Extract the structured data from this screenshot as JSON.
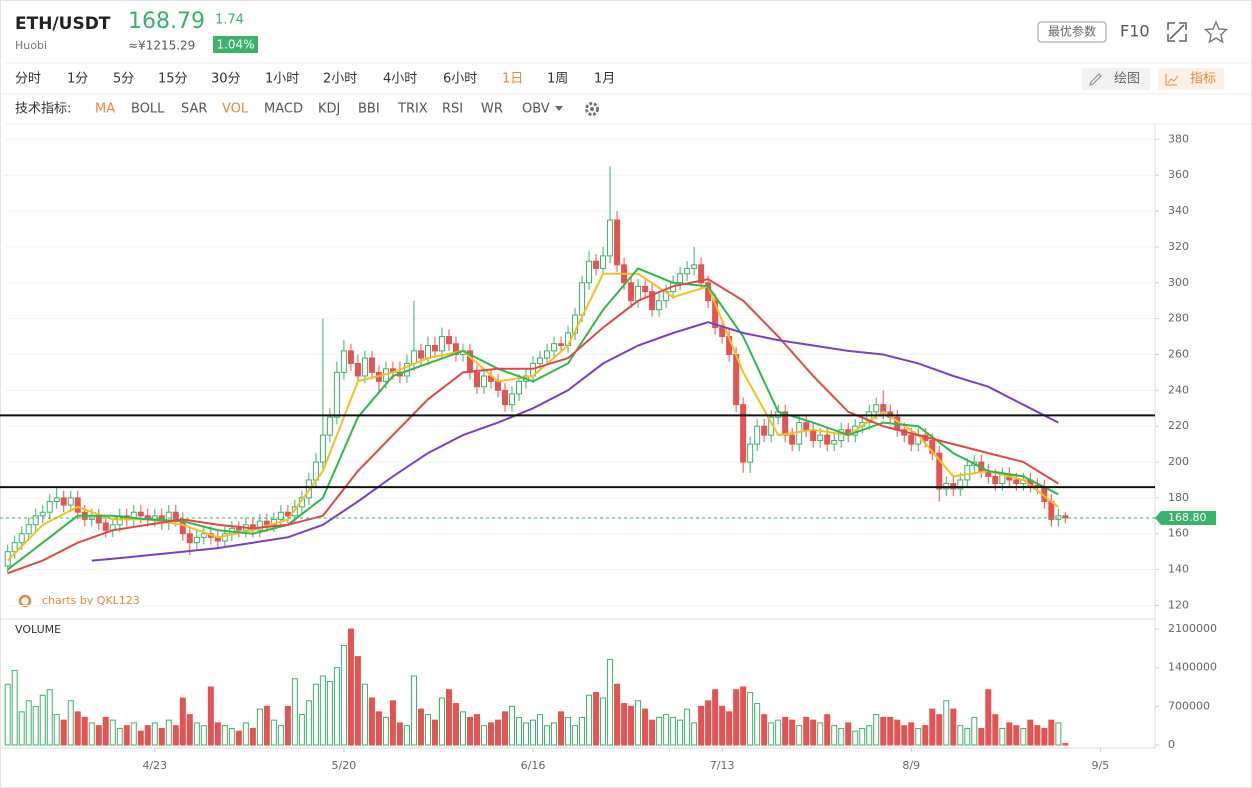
{
  "header": {
    "symbol": "ETH/USDT",
    "exchange": "Huobi",
    "price": "168.79",
    "change": "1.74",
    "cny": "≈¥1215.29",
    "change_pct": "1.04%",
    "params": "最优参数",
    "f10": "F10"
  },
  "toolbar": {
    "intervals": [
      "分时",
      "1分",
      "5分",
      "15分",
      "30分",
      "1小时",
      "2小时",
      "4小时",
      "6小时",
      "1日",
      "1周",
      "1月"
    ],
    "active_interval": 9,
    "draw": "绘图",
    "indicators_btn": "指标",
    "indicator_label": "技术指标:",
    "indicators": [
      "MA",
      "BOLL",
      "SAR",
      "VOL",
      "MACD",
      "KDJ",
      "BBI",
      "TRIX",
      "RSI",
      "WR",
      "OBV"
    ],
    "active_indicators": [
      0,
      3
    ]
  },
  "chart_data": {
    "type": "candlestick",
    "watermark": "charts by QKL123",
    "volume_label": "VOLUME",
    "up_color": "#3bb26a",
    "down_color": "#e55353",
    "xlim": [
      -1.1,
      163.8
    ],
    "xticks": [
      {
        "value": 21,
        "label": "4/23"
      },
      {
        "value": 48,
        "label": "5/20"
      },
      {
        "value": 75,
        "label": "6/16"
      },
      {
        "value": 102,
        "label": "7/13"
      },
      {
        "value": 129,
        "label": "8/9"
      },
      {
        "value": 156,
        "label": "9/5"
      }
    ],
    "ylim": [
      113,
      388
    ],
    "yticks": [
      120,
      140,
      160,
      180,
      200,
      220,
      240,
      260,
      280,
      300,
      320,
      340,
      360,
      380
    ],
    "y2lim": [
      0,
      2100000
    ],
    "y2ticks": [
      0,
      700000,
      1400000,
      2100000
    ],
    "hlines": [
      226,
      186
    ],
    "hline_color": "#111111",
    "last_price": {
      "value": 168.8,
      "label": "168.80"
    },
    "open": [
      142,
      150,
      155,
      160,
      165,
      170,
      172,
      178,
      180,
      176,
      180,
      172,
      168,
      170,
      166,
      162,
      165,
      170,
      168,
      172,
      170,
      168,
      170,
      166,
      172,
      168,
      160,
      155,
      158,
      160,
      158,
      156,
      160,
      163,
      162,
      165,
      162,
      167,
      165,
      168,
      172,
      170,
      175,
      180,
      190,
      200,
      215,
      225,
      250,
      262,
      255,
      248,
      258,
      250,
      245,
      252,
      250,
      248,
      255,
      262,
      258,
      265,
      262,
      270,
      266,
      260,
      262,
      250,
      242,
      248,
      245,
      240,
      232,
      238,
      245,
      248,
      255,
      258,
      262,
      266,
      265,
      272,
      282,
      300,
      312,
      308,
      315,
      335,
      310,
      300,
      290,
      298,
      295,
      285,
      290,
      295,
      300,
      305,
      308,
      310,
      300,
      290,
      275,
      270,
      260,
      232,
      200,
      210,
      220,
      215,
      225,
      228,
      215,
      210,
      222,
      218,
      212,
      215,
      210,
      212,
      218,
      215,
      220,
      222,
      228,
      232,
      228,
      225,
      218,
      215,
      210,
      215,
      212,
      205,
      185,
      188,
      185,
      190,
      198,
      200,
      195,
      192,
      188,
      193,
      190,
      188,
      190,
      187,
      186,
      178,
      168,
      170
    ],
    "high": [
      154,
      159,
      164,
      169,
      174,
      176,
      182,
      186,
      184,
      184,
      184,
      176,
      174,
      174,
      170,
      169,
      174,
      174,
      176,
      176,
      174,
      174,
      174,
      176,
      176,
      172,
      164,
      162,
      164,
      164,
      162,
      164,
      167,
      167,
      169,
      169,
      171,
      171,
      172,
      176,
      176,
      179,
      184,
      194,
      205,
      280,
      230,
      256,
      268,
      266,
      260,
      262,
      262,
      254,
      256,
      256,
      256,
      260,
      290,
      266,
      270,
      270,
      275,
      274,
      270,
      266,
      266,
      254,
      252,
      252,
      249,
      244,
      242,
      249,
      252,
      259,
      262,
      266,
      270,
      270,
      276,
      286,
      304,
      318,
      316,
      320,
      365,
      340,
      314,
      304,
      302,
      302,
      299,
      294,
      299,
      304,
      309,
      312,
      320,
      314,
      304,
      294,
      280,
      274,
      264,
      236,
      214,
      224,
      224,
      229,
      232,
      232,
      219,
      226,
      226,
      222,
      219,
      219,
      216,
      222,
      222,
      224,
      226,
      232,
      236,
      240,
      232,
      229,
      222,
      219,
      219,
      219,
      216,
      209,
      192,
      192,
      194,
      202,
      204,
      204,
      199,
      196,
      197,
      197,
      194,
      194,
      194,
      191,
      190,
      182,
      174,
      172
    ],
    "low": [
      138,
      146,
      151,
      156,
      161,
      166,
      168,
      174,
      172,
      172,
      168,
      164,
      164,
      162,
      158,
      158,
      161,
      164,
      164,
      166,
      164,
      164,
      162,
      162,
      164,
      156,
      148,
      151,
      154,
      154,
      152,
      152,
      156,
      158,
      158,
      158,
      158,
      161,
      161,
      164,
      166,
      166,
      171,
      176,
      186,
      196,
      211,
      221,
      246,
      251,
      244,
      244,
      246,
      238,
      241,
      246,
      244,
      244,
      251,
      254,
      254,
      258,
      258,
      262,
      256,
      256,
      246,
      238,
      238,
      241,
      236,
      228,
      228,
      234,
      241,
      244,
      251,
      254,
      258,
      261,
      261,
      268,
      278,
      296,
      304,
      304,
      311,
      306,
      296,
      286,
      286,
      291,
      281,
      281,
      286,
      291,
      296,
      301,
      304,
      296,
      286,
      271,
      266,
      256,
      228,
      194,
      194,
      206,
      211,
      211,
      221,
      211,
      206,
      206,
      214,
      208,
      208,
      206,
      206,
      208,
      211,
      211,
      216,
      218,
      224,
      224,
      221,
      214,
      211,
      206,
      206,
      208,
      201,
      178,
      181,
      181,
      181,
      186,
      194,
      191,
      188,
      184,
      184,
      186,
      184,
      184,
      183,
      182,
      174,
      164,
      164,
      166
    ],
    "close": [
      150,
      155,
      160,
      165,
      170,
      172,
      178,
      180,
      176,
      180,
      172,
      168,
      170,
      166,
      162,
      165,
      170,
      168,
      172,
      170,
      168,
      170,
      166,
      172,
      168,
      160,
      155,
      158,
      160,
      158,
      156,
      160,
      163,
      162,
      165,
      162,
      167,
      165,
      168,
      172,
      170,
      175,
      180,
      190,
      200,
      215,
      225,
      250,
      262,
      255,
      248,
      258,
      250,
      245,
      252,
      250,
      248,
      255,
      262,
      258,
      265,
      262,
      270,
      266,
      260,
      262,
      250,
      242,
      248,
      245,
      240,
      232,
      238,
      245,
      248,
      255,
      258,
      262,
      266,
      265,
      272,
      282,
      300,
      312,
      308,
      315,
      335,
      310,
      300,
      290,
      298,
      295,
      285,
      290,
      295,
      300,
      305,
      308,
      310,
      300,
      290,
      275,
      270,
      260,
      232,
      200,
      210,
      220,
      215,
      225,
      228,
      215,
      210,
      222,
      218,
      212,
      215,
      210,
      212,
      218,
      215,
      220,
      222,
      228,
      232,
      228,
      225,
      218,
      215,
      210,
      215,
      212,
      205,
      185,
      188,
      185,
      190,
      198,
      200,
      195,
      192,
      188,
      193,
      190,
      188,
      190,
      187,
      186,
      178,
      168,
      170,
      168.79
    ],
    "volume": [
      1100000,
      1350000,
      600000,
      800000,
      700000,
      900000,
      1000000,
      550000,
      450000,
      800000,
      600000,
      500000,
      400000,
      350000,
      500000,
      450000,
      300000,
      350000,
      400000,
      250000,
      350000,
      400000,
      300000,
      450000,
      350000,
      850000,
      550000,
      400000,
      350000,
      1050000,
      400000,
      350000,
      300000,
      250000,
      400000,
      300000,
      650000,
      700000,
      450000,
      350000,
      700000,
      1200000,
      550000,
      800000,
      1100000,
      1250000,
      1150000,
      1400000,
      1800000,
      2100000,
      1600000,
      1100000,
      850000,
      600000,
      500000,
      800000,
      400000,
      350000,
      1250000,
      650000,
      550000,
      450000,
      850000,
      1000000,
      750000,
      600000,
      500000,
      550000,
      350000,
      400000,
      450000,
      600000,
      700000,
      500000,
      400000,
      450000,
      550000,
      350000,
      400000,
      600000,
      500000,
      350000,
      500000,
      900000,
      950000,
      850000,
      1550000,
      1100000,
      750000,
      700000,
      800000,
      650000,
      450000,
      500000,
      550000,
      500000,
      450000,
      650000,
      400000,
      700000,
      800000,
      1000000,
      700000,
      600000,
      1000000,
      1050000,
      950000,
      750000,
      550000,
      400000,
      450000,
      500000,
      450000,
      350000,
      500000,
      450000,
      400000,
      550000,
      350000,
      300000,
      400000,
      250000,
      300000,
      350000,
      550000,
      500000,
      500000,
      450000,
      350000,
      400000,
      300000,
      350000,
      650000,
      550000,
      800000,
      650000,
      350000,
      300000,
      500000,
      300000,
      1000000,
      550000,
      300000,
      400000,
      350000,
      300000,
      450000,
      350000,
      300000,
      450000,
      400000,
      30000
    ],
    "series": [
      {
        "color": "#f2c21b",
        "x": [
          0,
          5,
          10,
          15,
          20,
          25,
          30,
          35,
          40,
          45,
          50,
          55,
          60,
          65,
          70,
          75,
          80,
          85,
          90,
          95,
          100,
          105,
          110,
          115,
          120,
          125,
          130,
          135,
          140,
          145,
          150
        ],
        "values": [
          145,
          165,
          175,
          168,
          168,
          165,
          158,
          162,
          168,
          195,
          245,
          250,
          258,
          262,
          245,
          248,
          265,
          305,
          305,
          292,
          298,
          250,
          215,
          218,
          215,
          228,
          215,
          192,
          195,
          190,
          175
        ]
      },
      {
        "color": "#2eb84e",
        "x": [
          0,
          5,
          10,
          15,
          20,
          25,
          30,
          35,
          40,
          45,
          50,
          55,
          60,
          65,
          70,
          75,
          80,
          85,
          90,
          95,
          100,
          105,
          110,
          115,
          120,
          125,
          130,
          135,
          140,
          145,
          150
        ],
        "values": [
          140,
          155,
          170,
          170,
          168,
          167,
          162,
          160,
          165,
          180,
          225,
          248,
          255,
          262,
          252,
          245,
          255,
          285,
          308,
          300,
          298,
          270,
          228,
          222,
          215,
          222,
          220,
          205,
          195,
          192,
          182
        ]
      },
      {
        "color": "#e04848",
        "x": [
          0,
          5,
          10,
          15,
          20,
          25,
          30,
          35,
          40,
          45,
          50,
          55,
          60,
          65,
          70,
          75,
          80,
          85,
          90,
          95,
          100,
          105,
          110,
          115,
          120,
          125,
          130,
          135,
          140,
          145,
          150
        ],
        "values": [
          138,
          145,
          155,
          162,
          165,
          168,
          165,
          163,
          165,
          170,
          195,
          215,
          235,
          250,
          252,
          252,
          258,
          275,
          290,
          298,
          302,
          290,
          270,
          248,
          228,
          220,
          215,
          210,
          205,
          200,
          188
        ]
      },
      {
        "color": "#7b3fc8",
        "x": [
          12,
          15,
          20,
          25,
          30,
          35,
          40,
          45,
          50,
          55,
          60,
          65,
          70,
          75,
          80,
          85,
          90,
          95,
          100,
          105,
          110,
          115,
          120,
          125,
          130,
          135,
          140,
          145,
          150
        ],
        "values": [
          145,
          146,
          148,
          150,
          152,
          155,
          158,
          165,
          178,
          192,
          205,
          215,
          222,
          230,
          240,
          255,
          265,
          272,
          278,
          272,
          268,
          265,
          262,
          260,
          255,
          248,
          242,
          232,
          222
        ]
      }
    ]
  }
}
